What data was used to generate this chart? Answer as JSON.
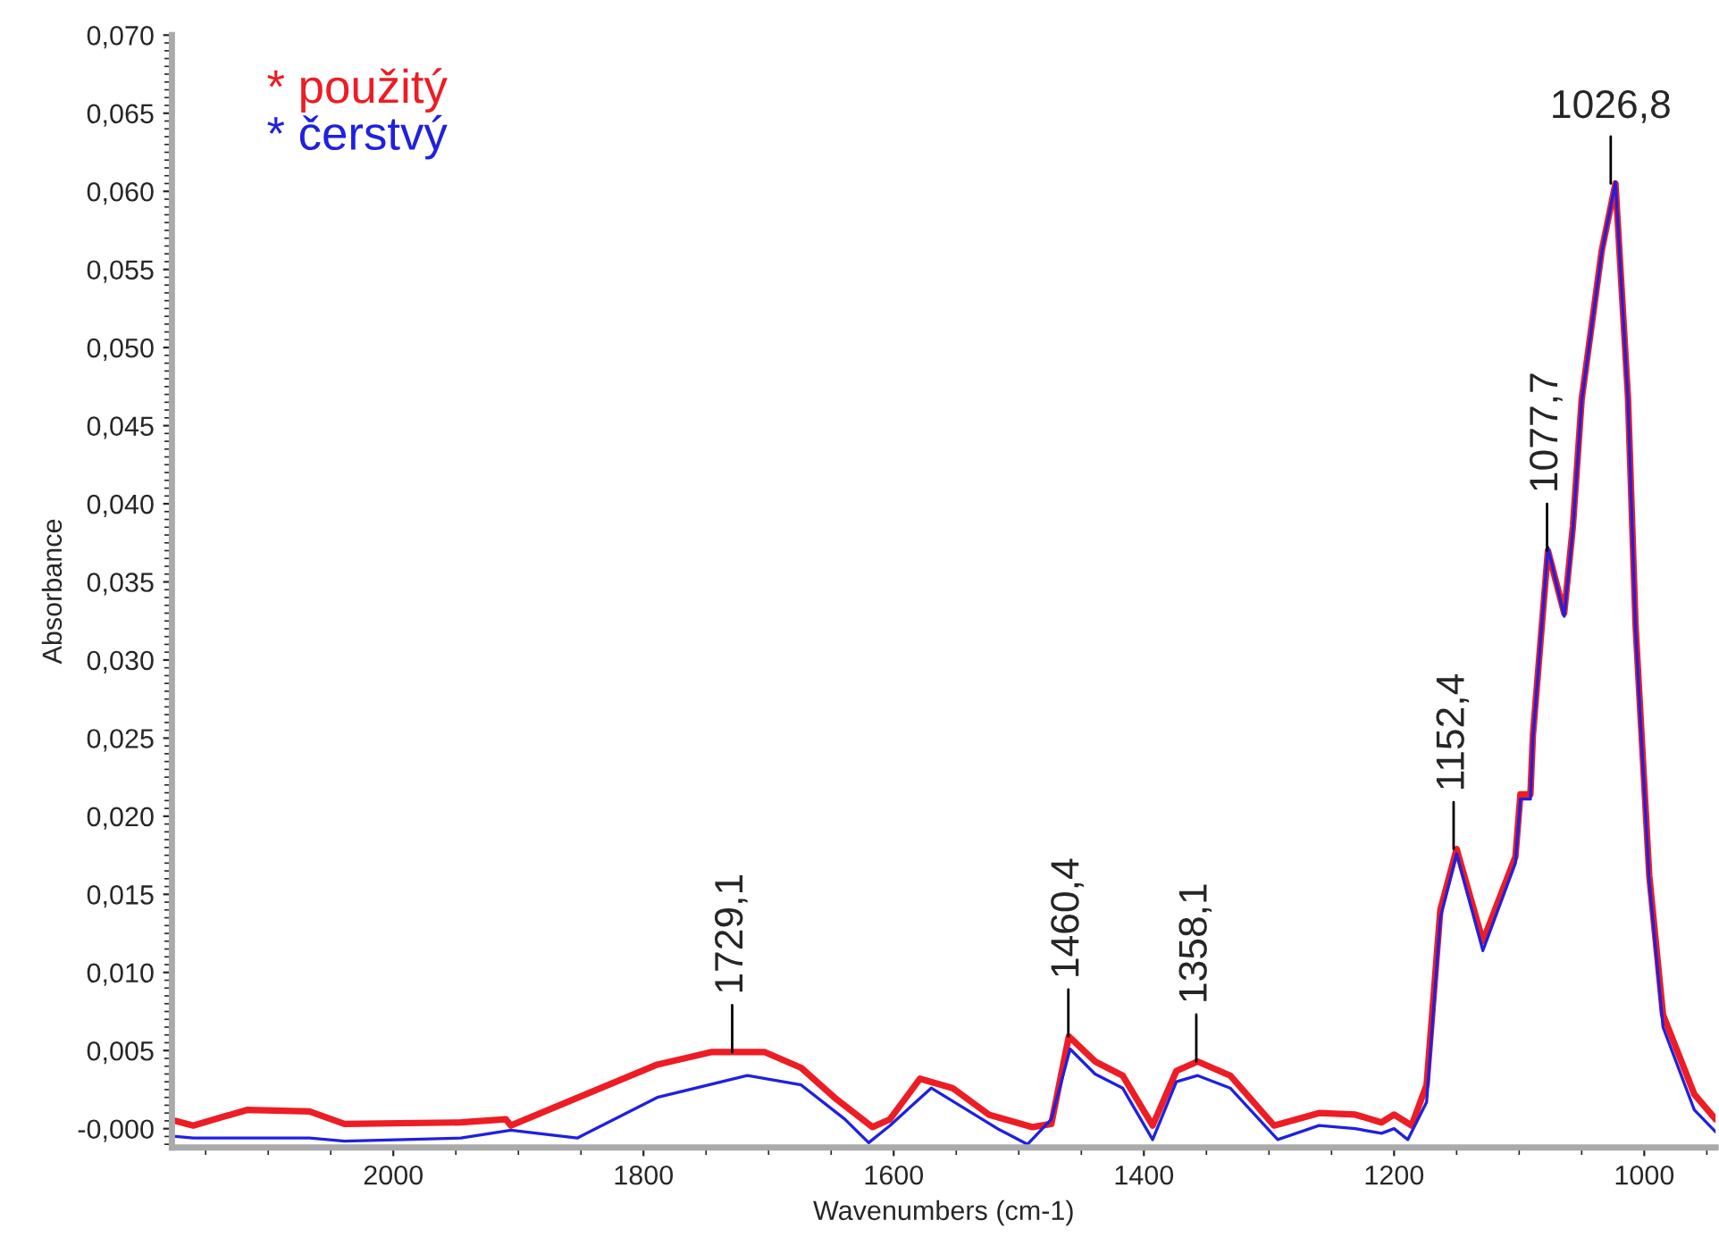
{
  "chart_data": {
    "type": "line",
    "xlabel": "Wavenumbers (cm-1)",
    "ylabel": "Absorbance",
    "xlim": [
      2177,
      943
    ],
    "ylim": [
      -0.0012,
      0.07
    ],
    "xticks": [
      2000,
      1800,
      1600,
      1400,
      1200,
      1000
    ],
    "yticks": [
      {
        "value": 0,
        "label": "-0,000"
      },
      {
        "value": 0.005,
        "label": "0,005"
      },
      {
        "value": 0.01,
        "label": "0,010"
      },
      {
        "value": 0.015,
        "label": "0,015"
      },
      {
        "value": 0.02,
        "label": "0,020"
      },
      {
        "value": 0.025,
        "label": "0,025"
      },
      {
        "value": 0.03,
        "label": "0,030"
      },
      {
        "value": 0.035,
        "label": "0,035"
      },
      {
        "value": 0.04,
        "label": "0,040"
      },
      {
        "value": 0.045,
        "label": "0,045"
      },
      {
        "value": 0.05,
        "label": "0,050"
      },
      {
        "value": 0.055,
        "label": "0,055"
      },
      {
        "value": 0.06,
        "label": "0,060"
      },
      {
        "value": 0.065,
        "label": "0,065"
      },
      {
        "value": 0.07,
        "label": "0,070"
      }
    ],
    "legend": "top left",
    "grid": false,
    "series": [
      {
        "name": "* použitý",
        "color": "#ee1c24",
        "x": [
          2174,
          2160,
          2117,
          2067,
          2039,
          1946,
          1910,
          1906,
          1846,
          1789,
          1746,
          1703,
          1674,
          1646,
          1617,
          1603,
          1579,
          1553,
          1524,
          1489,
          1474,
          1460,
          1439,
          1417,
          1393,
          1374,
          1357,
          1331,
          1296,
          1260,
          1231,
          1210,
          1200,
          1186,
          1174,
          1163,
          1150,
          1129,
          1103,
          1099,
          1091,
          1089,
          1077,
          1064,
          1057,
          1050,
          1034,
          1023,
          1013,
          1007,
          996,
          985,
          960,
          943
        ],
        "values": [
          0.0005,
          0.0002,
          0.0012,
          0.0011,
          0.0003,
          0.0004,
          0.0006,
          0.0002,
          0.0022,
          0.0041,
          0.0049,
          0.0049,
          0.0039,
          0.0019,
          0.0001,
          0.0006,
          0.0032,
          0.0026,
          0.0009,
          0.0001,
          0.0003,
          0.0059,
          0.0043,
          0.0034,
          0.0002,
          0.0037,
          0.0043,
          0.0034,
          0.0002,
          0.001,
          0.0009,
          0.0004,
          0.0009,
          0.0002,
          0.0028,
          0.014,
          0.0179,
          0.012,
          0.0174,
          0.0214,
          0.0214,
          0.0252,
          0.037,
          0.033,
          0.0386,
          0.0467,
          0.0562,
          0.0605,
          0.0468,
          0.0323,
          0.0162,
          0.0073,
          0.0022,
          0.0006
        ]
      },
      {
        "name": "* čerstvý",
        "color": "#2020e0",
        "x": [
          2174,
          2160,
          2117,
          2067,
          2039,
          1946,
          1906,
          1853,
          1789,
          1717,
          1674,
          1639,
          1620,
          1603,
          1570,
          1517,
          1493,
          1474,
          1459,
          1439,
          1417,
          1393,
          1374,
          1357,
          1331,
          1293,
          1260,
          1231,
          1210,
          1200,
          1189,
          1174,
          1163,
          1150,
          1129,
          1103,
          1099,
          1091,
          1089,
          1077,
          1064,
          1057,
          1050,
          1034,
          1023,
          1013,
          1007,
          996,
          985,
          960,
          943
        ],
        "values": [
          -0.0005,
          -0.0006,
          -0.0006,
          -0.0006,
          -0.0008,
          -0.0006,
          -0.0001,
          -0.0006,
          0.002,
          0.0034,
          0.0028,
          0.0006,
          -0.0009,
          0.0002,
          0.0026,
          0.0,
          -0.001,
          0.0006,
          0.0051,
          0.0035,
          0.0026,
          -0.0007,
          0.003,
          0.0034,
          0.0026,
          -0.0007,
          0.0002,
          0.0,
          -0.0003,
          0.0,
          -0.0007,
          0.0017,
          0.0135,
          0.0176,
          0.0114,
          0.017,
          0.0211,
          0.0211,
          0.025,
          0.0372,
          0.0328,
          0.0384,
          0.0466,
          0.0561,
          0.0606,
          0.0466,
          0.032,
          0.0158,
          0.0065,
          0.0012,
          -0.0002
        ]
      }
    ],
    "annotations": [
      {
        "text": "1729,1",
        "x": 1729.1,
        "y": 0.0049
      },
      {
        "text": "1460,4",
        "x": 1460.4,
        "y": 0.0059
      },
      {
        "text": "1358,1",
        "x": 1358.1,
        "y": 0.0043
      },
      {
        "text": "1152,4",
        "x": 1152.4,
        "y": 0.0179
      },
      {
        "text": "1077,7",
        "x": 1077.7,
        "y": 0.037
      },
      {
        "text": "1026,8",
        "x": 1026.8,
        "y": 0.0605
      }
    ]
  }
}
